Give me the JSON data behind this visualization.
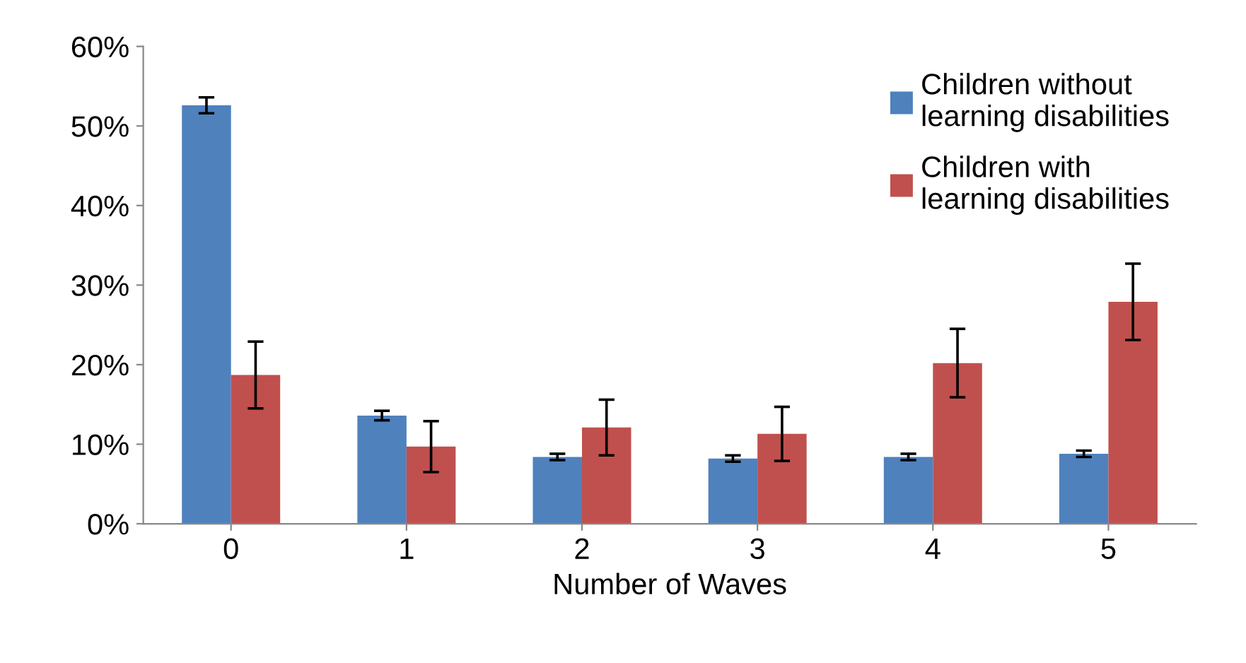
{
  "chart_data": {
    "type": "bar",
    "xlabel": "Number of Waves",
    "categories": [
      "0",
      "1",
      "2",
      "3",
      "4",
      "5"
    ],
    "series": [
      {
        "name": "Children without\nlearning disabilities",
        "color": "#4f81bd",
        "values": [
          52.6,
          13.6,
          8.4,
          8.2,
          8.4,
          8.8
        ],
        "errors": [
          1.0,
          0.6,
          0.4,
          0.4,
          0.4,
          0.4
        ]
      },
      {
        "name": "Children with\nlearning disabilities",
        "color": "#c0504d",
        "values": [
          18.7,
          9.7,
          12.1,
          11.3,
          20.2,
          27.9
        ],
        "errors": [
          4.2,
          3.2,
          3.5,
          3.4,
          4.3,
          4.8
        ]
      }
    ],
    "ylim": [
      0,
      60
    ],
    "yticks": [
      {
        "value": 0,
        "label": "0%"
      },
      {
        "value": 10,
        "label": "10%"
      },
      {
        "value": 20,
        "label": "20%"
      },
      {
        "value": 30,
        "label": "30%"
      },
      {
        "value": 40,
        "label": "40%"
      },
      {
        "value": 50,
        "label": "50%"
      },
      {
        "value": 60,
        "label": "60%"
      }
    ],
    "legend": "top right",
    "grid": false
  }
}
